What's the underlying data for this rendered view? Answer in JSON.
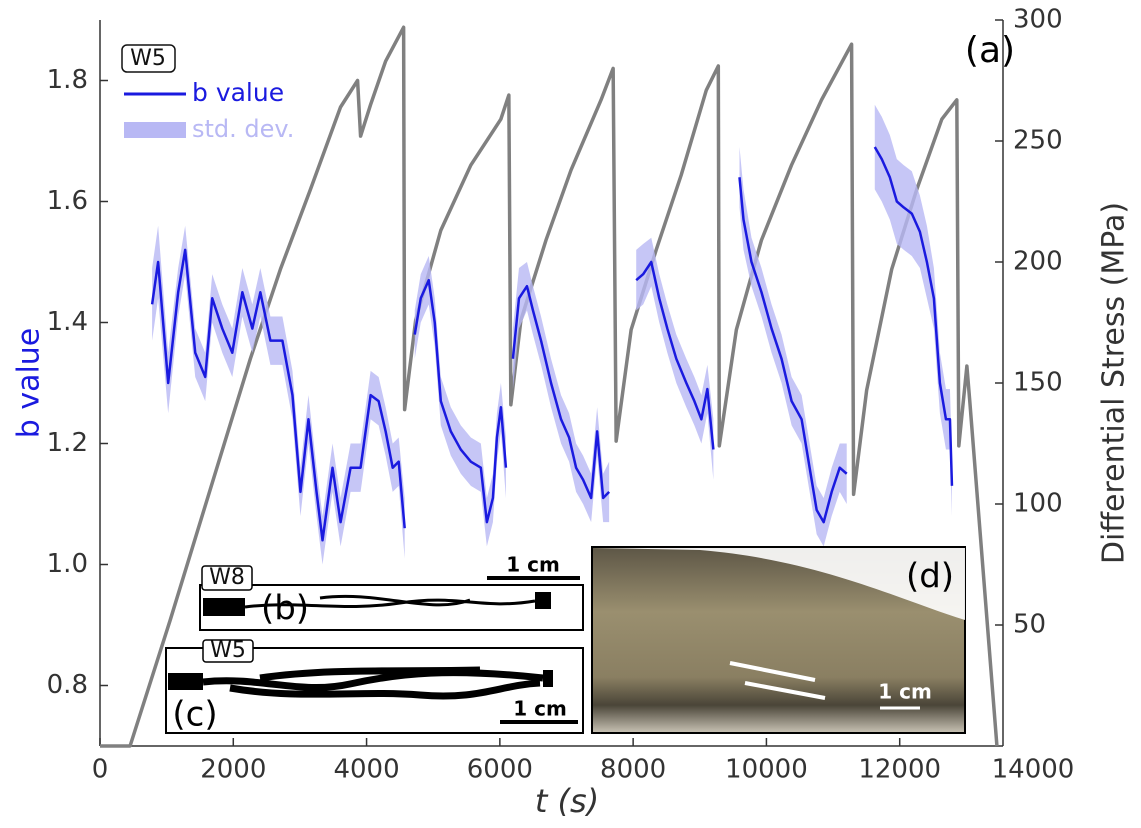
{
  "chart_data": {
    "type": "line",
    "ylabel": "b value",
    "y2label": "Differential Stress (MPa)",
    "xlabel": "t (s)",
    "xlim": [
      0,
      13550
    ],
    "xticks": [
      0,
      2000,
      4000,
      6000,
      8000,
      10000,
      12000,
      14000
    ],
    "ylim": [
      0.7,
      1.9
    ],
    "yticks": [
      0.8,
      {
        "value": 1,
        "label": "1.0"
      },
      1.2,
      1.4,
      1.6,
      1.8
    ],
    "y2lim": [
      0,
      300
    ],
    "y2ticks": [
      50,
      100,
      150,
      200,
      250,
      300
    ],
    "series": [
      {
        "name": "b value",
        "color": "#1a1adf",
        "error_name": "std. dev.",
        "error_color": "#b8b8f4",
        "x": [
          782,
          872,
          1023,
          1173,
          1278,
          1429,
          1579,
          1684,
          1835,
          1985,
          2136,
          2286,
          2406,
          2557,
          2737,
          2888,
          3008,
          3128,
          3249,
          3339,
          3489,
          3610,
          3760,
          3910,
          4061,
          4181,
          4286,
          4392,
          4482,
          4572,
          4650,
          4723,
          4813,
          4933,
          5023,
          5114,
          5264,
          5414,
          5565,
          5715,
          5805,
          5896,
          5956,
          6016,
          6091,
          6140,
          6196,
          6287,
          6407,
          6497,
          6618,
          6768,
          6918,
          7039,
          7144,
          7249,
          7370,
          7460,
          7550,
          7640,
          7840,
          8046,
          8152,
          8272,
          8392,
          8513,
          8648,
          8798,
          8919,
          9024,
          9114,
          9204,
          9400,
          9596,
          9656,
          9776,
          9926,
          10077,
          10227,
          10378,
          10528,
          10648,
          10754,
          10859,
          10979,
          11100,
          11205,
          11400,
          11626,
          11731,
          11852,
          11957,
          12062,
          12182,
          12303,
          12408,
          12513,
          12603,
          12694,
          12754,
          12784
        ],
        "values": [
          1.43,
          1.5,
          1.3,
          1.45,
          1.52,
          1.35,
          1.31,
          1.44,
          1.39,
          1.35,
          1.45,
          1.39,
          1.45,
          1.37,
          1.37,
          1.28,
          1.12,
          1.24,
          1.12,
          1.04,
          1.16,
          1.07,
          1.16,
          1.16,
          1.28,
          1.27,
          1.22,
          1.16,
          1.17,
          1.06,
          null,
          1.38,
          1.44,
          1.47,
          1.4,
          1.27,
          1.22,
          1.19,
          1.17,
          1.16,
          1.07,
          1.11,
          1.21,
          1.26,
          1.16,
          null,
          1.34,
          1.44,
          1.46,
          1.42,
          1.37,
          1.3,
          1.24,
          1.21,
          1.16,
          1.14,
          1.11,
          1.22,
          1.11,
          1.12,
          null,
          1.47,
          1.48,
          1.5,
          1.44,
          1.39,
          1.34,
          1.3,
          1.27,
          1.24,
          1.29,
          1.19,
          null,
          1.64,
          1.57,
          1.5,
          1.45,
          1.39,
          1.34,
          1.27,
          1.24,
          1.16,
          1.09,
          1.07,
          1.12,
          1.16,
          1.15,
          null,
          1.69,
          1.67,
          1.64,
          1.6,
          1.59,
          1.58,
          1.55,
          1.5,
          1.44,
          1.3,
          1.24,
          1.24,
          1.13
        ],
        "errors": [
          0.06,
          0.06,
          0.05,
          0.04,
          0.04,
          0.04,
          0.04,
          0.04,
          0.04,
          0.04,
          0.04,
          0.04,
          0.04,
          0.04,
          0.04,
          0.04,
          0.04,
          0.04,
          0.04,
          0.04,
          0.04,
          0.04,
          0.04,
          0.04,
          0.04,
          0.04,
          0.04,
          0.04,
          0.04,
          0.05,
          null,
          0.04,
          0.04,
          0.04,
          0.04,
          0.04,
          0.04,
          0.04,
          0.04,
          0.04,
          0.04,
          0.04,
          0.04,
          0.04,
          0.05,
          null,
          0.05,
          0.05,
          0.04,
          0.04,
          0.04,
          0.04,
          0.04,
          0.04,
          0.04,
          0.04,
          0.04,
          0.04,
          0.04,
          0.05,
          null,
          0.05,
          0.05,
          0.04,
          0.04,
          0.04,
          0.04,
          0.04,
          0.04,
          0.04,
          0.04,
          0.05,
          null,
          0.05,
          0.05,
          0.04,
          0.04,
          0.04,
          0.04,
          0.04,
          0.04,
          0.04,
          0.04,
          0.04,
          0.04,
          0.04,
          0.05,
          null,
          0.07,
          0.07,
          0.07,
          0.07,
          0.07,
          0.07,
          0.06,
          0.06,
          0.05,
          0.05,
          0.05,
          0.05,
          0.05
        ]
      },
      {
        "axis": "y2",
        "color": "#808080",
        "x": [
          0,
          451,
          1053,
          1654,
          2256,
          2707,
          3158,
          3609,
          3865,
          3910,
          4060,
          4286,
          4556,
          4571,
          4737,
          5113,
          5564,
          6015,
          6135,
          6165,
          6316,
          6692,
          7068,
          7519,
          7700,
          7745,
          7970,
          8346,
          8722,
          9098,
          9278,
          9293,
          9549,
          9925,
          10376,
          10827,
          11278,
          11308,
          11504,
          11880,
          12256,
          12632,
          12857,
          12887,
          13008,
          13050,
          13459
        ],
        "values": [
          0,
          0,
          52,
          106,
          160,
          197,
          230,
          264,
          275,
          252,
          265,
          283,
          297,
          139,
          176,
          213,
          240,
          259,
          269,
          141,
          176,
          209,
          238,
          267,
          280,
          126,
          172,
          205,
          236,
          271,
          281,
          124,
          172,
          209,
          240,
          267,
          290,
          104,
          147,
          197,
          230,
          259,
          267,
          124,
          157,
          143,
          0
        ]
      }
    ],
    "annotations": {
      "panel": "(a)",
      "sample": "W5",
      "insets": [
        {
          "sample": "W8",
          "panel": "(b)",
          "scale": "1 cm"
        },
        {
          "sample": "W5",
          "panel": "(c)",
          "scale": "1 cm"
        },
        {
          "panel": "(d)",
          "scale": "1 cm"
        }
      ]
    }
  }
}
